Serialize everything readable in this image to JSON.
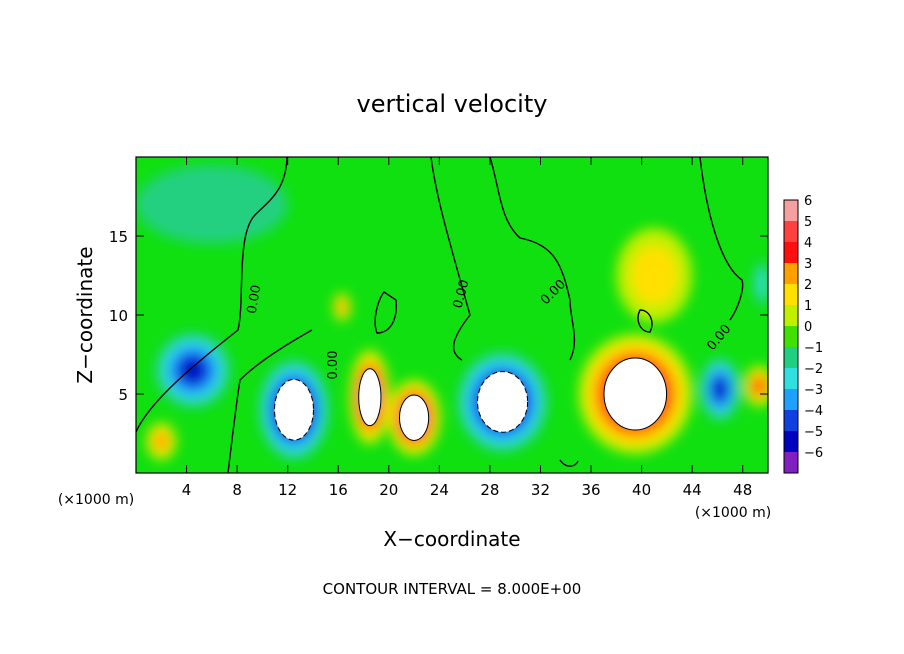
{
  "chart_data": {
    "type": "heatmap",
    "title": "vertical velocity",
    "xlabel": "X−coordinate",
    "ylabel": "Z−coordinate",
    "x_unit_left": "(×1000 m)",
    "x_unit_right": "(×1000 m)",
    "footer": "CONTOUR INTERVAL = 8.000E+00",
    "xlim": [
      0,
      50
    ],
    "ylim": [
      0,
      20
    ],
    "x_ticks": [
      4,
      8,
      12,
      16,
      20,
      24,
      28,
      32,
      36,
      40,
      44,
      48
    ],
    "x_tick_labels": [
      "4",
      "8",
      "12",
      "16",
      "20",
      "24",
      "28",
      "32",
      "36",
      "40",
      "44",
      "48"
    ],
    "y_ticks": [
      5,
      10,
      15
    ],
    "y_tick_labels": [
      "5",
      "10",
      "15"
    ],
    "contour_label": "0.00",
    "colorbar": {
      "labels": [
        "6",
        "5",
        "4",
        "3",
        "2",
        "1",
        "0",
        "−1",
        "−2",
        "−3",
        "−4",
        "−5",
        "−6"
      ],
      "colors": [
        "#f4a0a0",
        "#ff4040",
        "#ff1010",
        "#ffa000",
        "#ffe000",
        "#c0f000",
        "#40e000",
        "#20d080",
        "#30e0e0",
        "#20a0ff",
        "#1040e0",
        "#0000c0",
        "#8020c0"
      ]
    },
    "background_color": "#10e010",
    "features": [
      {
        "x": 4.5,
        "z": 6.5,
        "value": -5,
        "rx": 3.0,
        "rz": 2.4
      },
      {
        "x": 2.0,
        "z": 2.0,
        "value": 3,
        "rx": 1.2,
        "rz": 1.2
      },
      {
        "x": 12.5,
        "z": 4.0,
        "value": -7,
        "rx": 2.8,
        "rz": 3.2
      },
      {
        "x": 18.5,
        "z": 4.8,
        "value": 7,
        "rx": 1.6,
        "rz": 3.0
      },
      {
        "x": 22.0,
        "z": 3.5,
        "value": 7,
        "rx": 2.1,
        "rz": 2.4
      },
      {
        "x": 29.0,
        "z": 4.5,
        "value": -7,
        "rx": 3.6,
        "rz": 3.2
      },
      {
        "x": 39.5,
        "z": 5.0,
        "value": 7,
        "rx": 4.5,
        "rz": 3.8
      },
      {
        "x": 46.2,
        "z": 5.3,
        "value": -5,
        "rx": 1.6,
        "rz": 2.0
      },
      {
        "x": 49.3,
        "z": 5.5,
        "value": 4,
        "rx": 1.2,
        "rz": 1.3
      },
      {
        "x": 16.3,
        "z": 10.5,
        "value": 3,
        "rx": 0.7,
        "rz": 0.9
      },
      {
        "x": 41.0,
        "z": 12.5,
        "value": 1.5,
        "rx": 3.0,
        "rz": 3.0
      },
      {
        "x": 49.5,
        "z": 12.0,
        "value": -2,
        "rx": 0.6,
        "rz": 1.5
      },
      {
        "x": 6.0,
        "z": 17.0,
        "value": -1,
        "rx": 6.0,
        "rz": 2.5
      }
    ]
  }
}
